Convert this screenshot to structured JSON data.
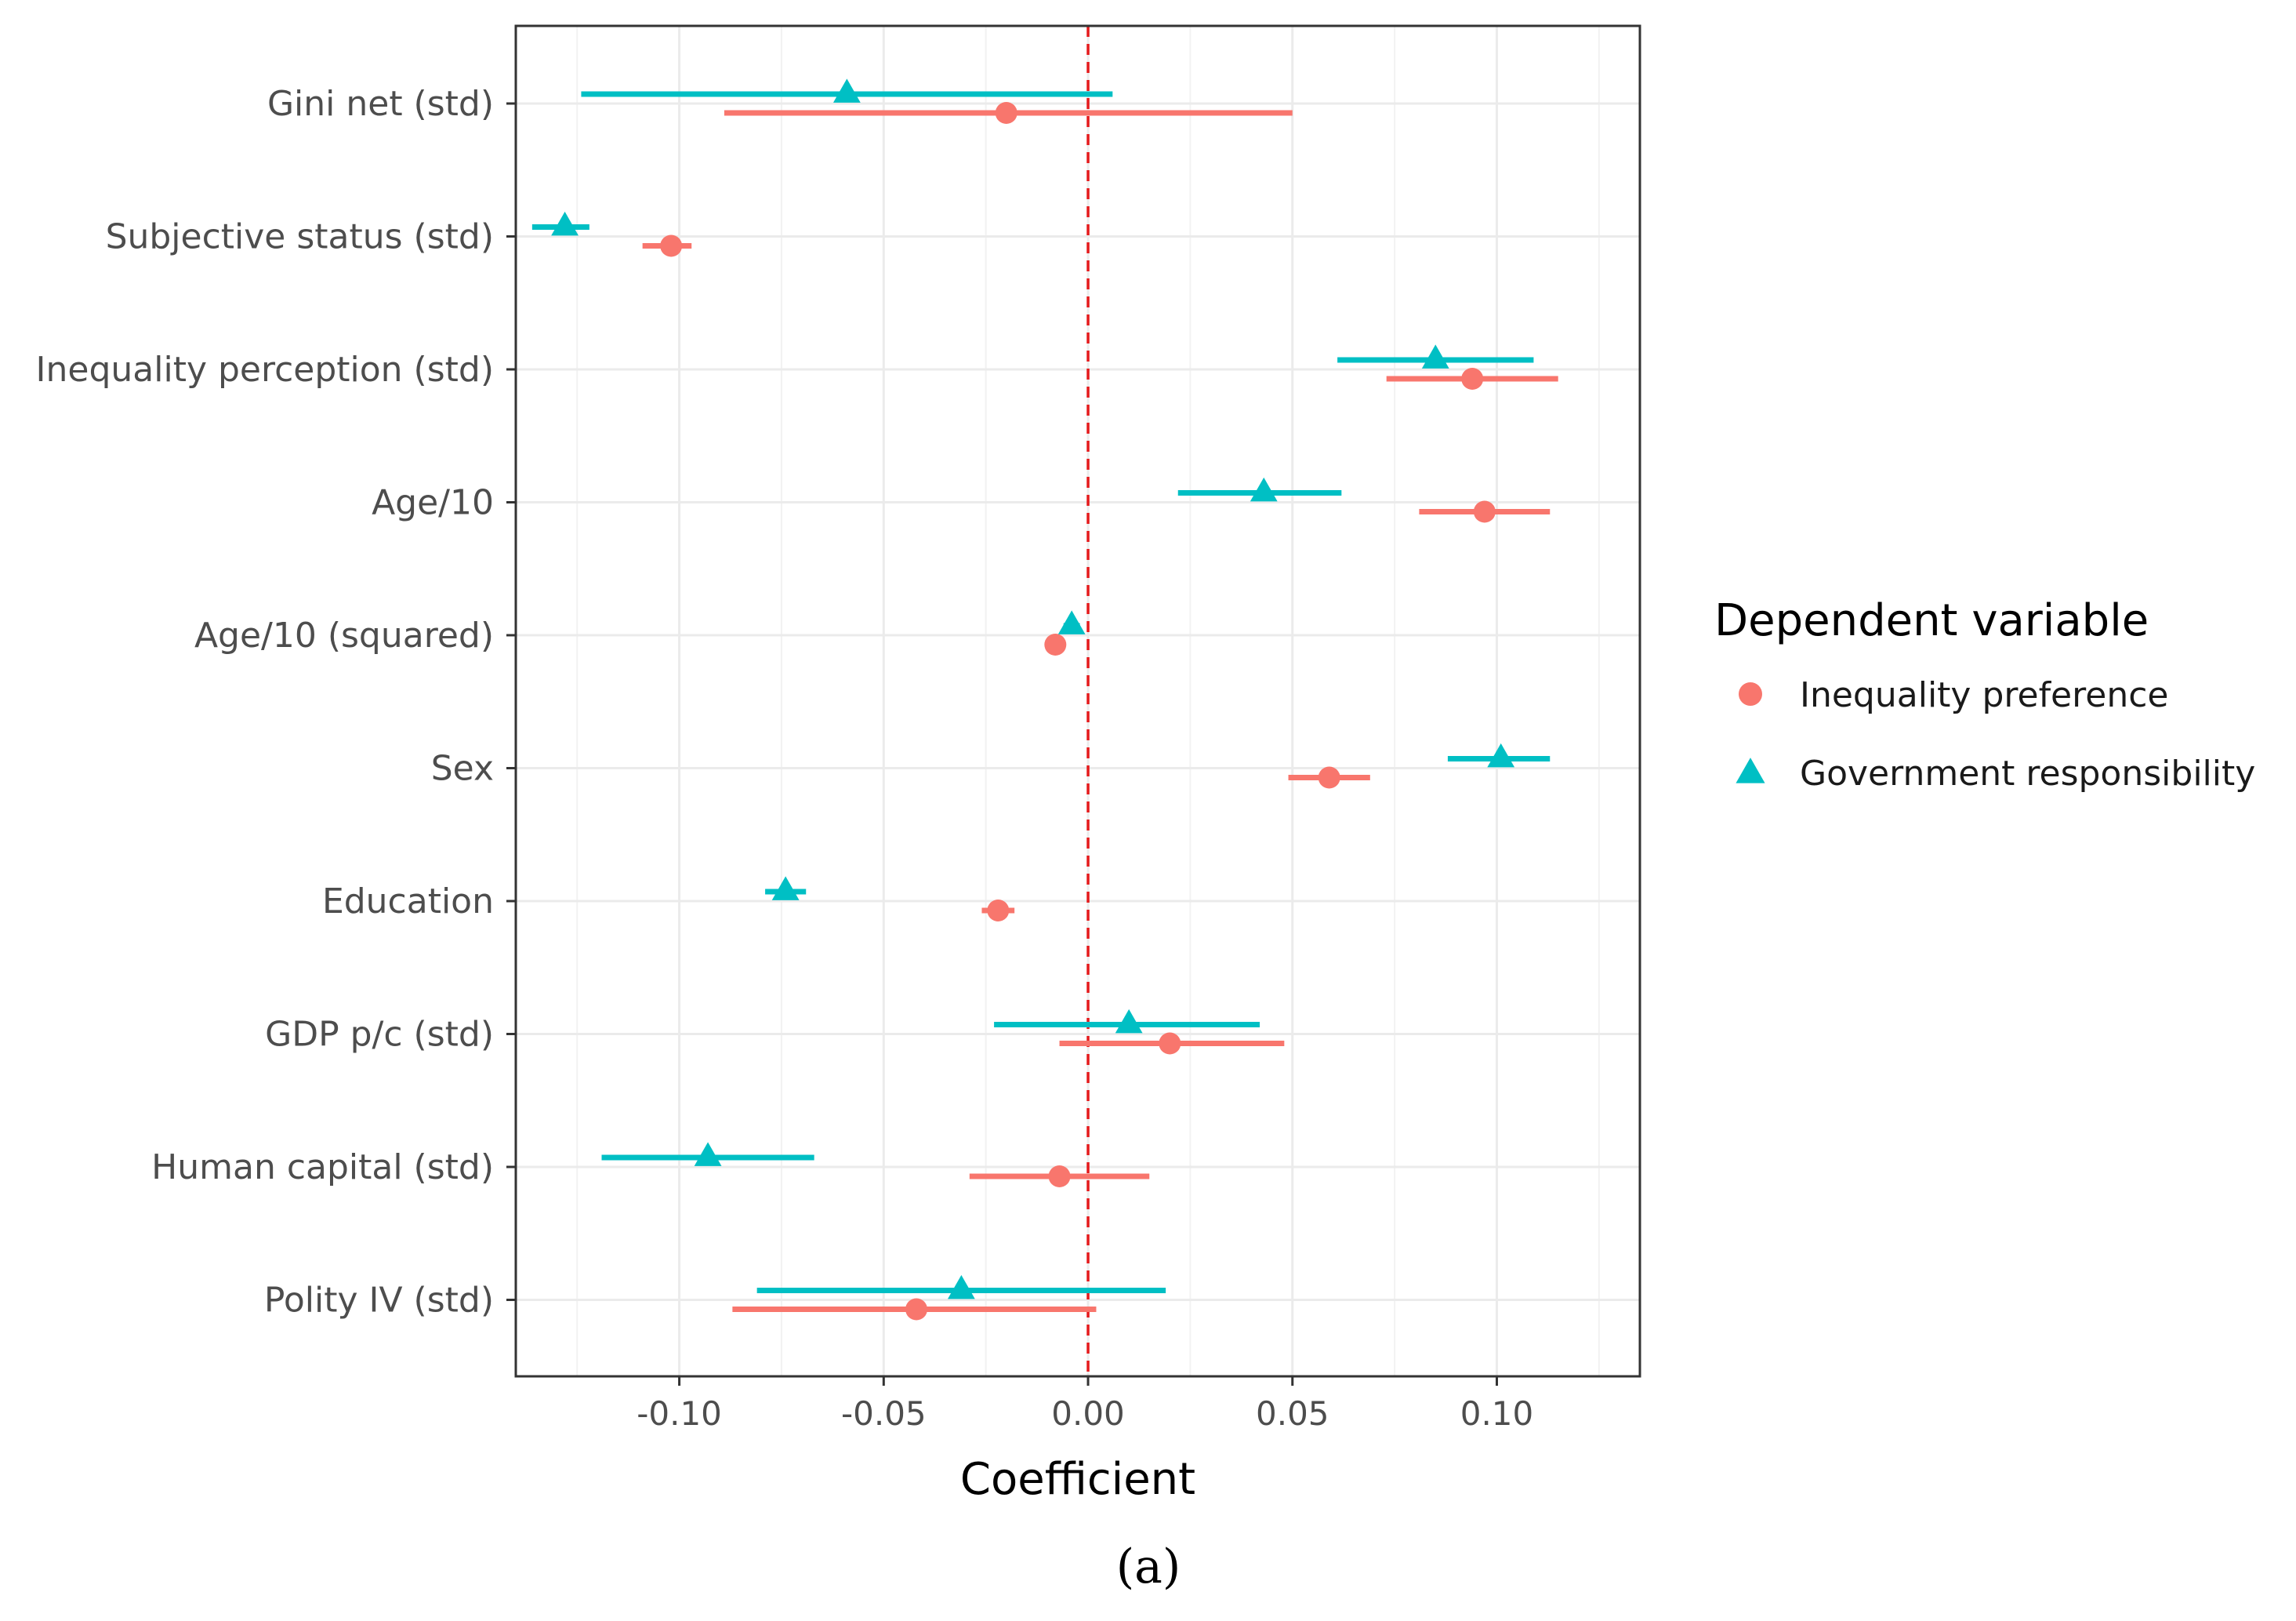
{
  "chart_data": {
    "type": "dot-errorbar",
    "title": "",
    "xlabel": "Coefficient",
    "ylabel": "",
    "xlim": [
      -0.14,
      0.135
    ],
    "x_ticks": [
      -0.1,
      -0.05,
      0.0,
      0.05,
      0.1
    ],
    "x_tick_labels": [
      "-0.10",
      "-0.05",
      "0.00",
      "0.05",
      "0.10"
    ],
    "reference_line": {
      "x": 0.0,
      "style": "dashed",
      "color": "#e41a1c"
    },
    "grid": true,
    "categories": [
      "Gini net (std)",
      "Subjective status (std)",
      "Inequality perception (std)",
      "Age/10",
      "Age/10 (squared)",
      "Sex",
      "Education",
      "GDP p/c (std)",
      "Human capital (std)",
      "Polity IV (std)"
    ],
    "series": [
      {
        "name": "Inequality preference",
        "marker": "circle",
        "color": "#F8766D",
        "estimates": [
          -0.02,
          -0.102,
          0.094,
          0.097,
          -0.008,
          0.059,
          -0.022,
          0.02,
          -0.007,
          -0.042
        ],
        "lower": [
          -0.089,
          -0.109,
          0.073,
          0.081,
          -0.01,
          0.049,
          -0.026,
          -0.007,
          -0.029,
          -0.087
        ],
        "upper": [
          0.05,
          -0.097,
          0.115,
          0.113,
          -0.006,
          0.069,
          -0.018,
          0.048,
          0.015,
          0.002
        ]
      },
      {
        "name": "Government responsibility",
        "marker": "triangle",
        "color": "#00BFC4",
        "estimates": [
          -0.059,
          -0.128,
          0.085,
          0.043,
          -0.004,
          0.101,
          -0.074,
          0.01,
          -0.093,
          -0.031
        ],
        "lower": [
          -0.124,
          -0.136,
          0.061,
          0.022,
          -0.006,
          0.088,
          -0.079,
          -0.023,
          -0.119,
          -0.081
        ],
        "upper": [
          0.006,
          -0.122,
          0.109,
          0.062,
          -0.002,
          0.113,
          -0.069,
          0.042,
          -0.067,
          0.019
        ]
      }
    ],
    "legend": {
      "title": "Dependent variable",
      "placement": "right"
    }
  },
  "caption": "(a)"
}
